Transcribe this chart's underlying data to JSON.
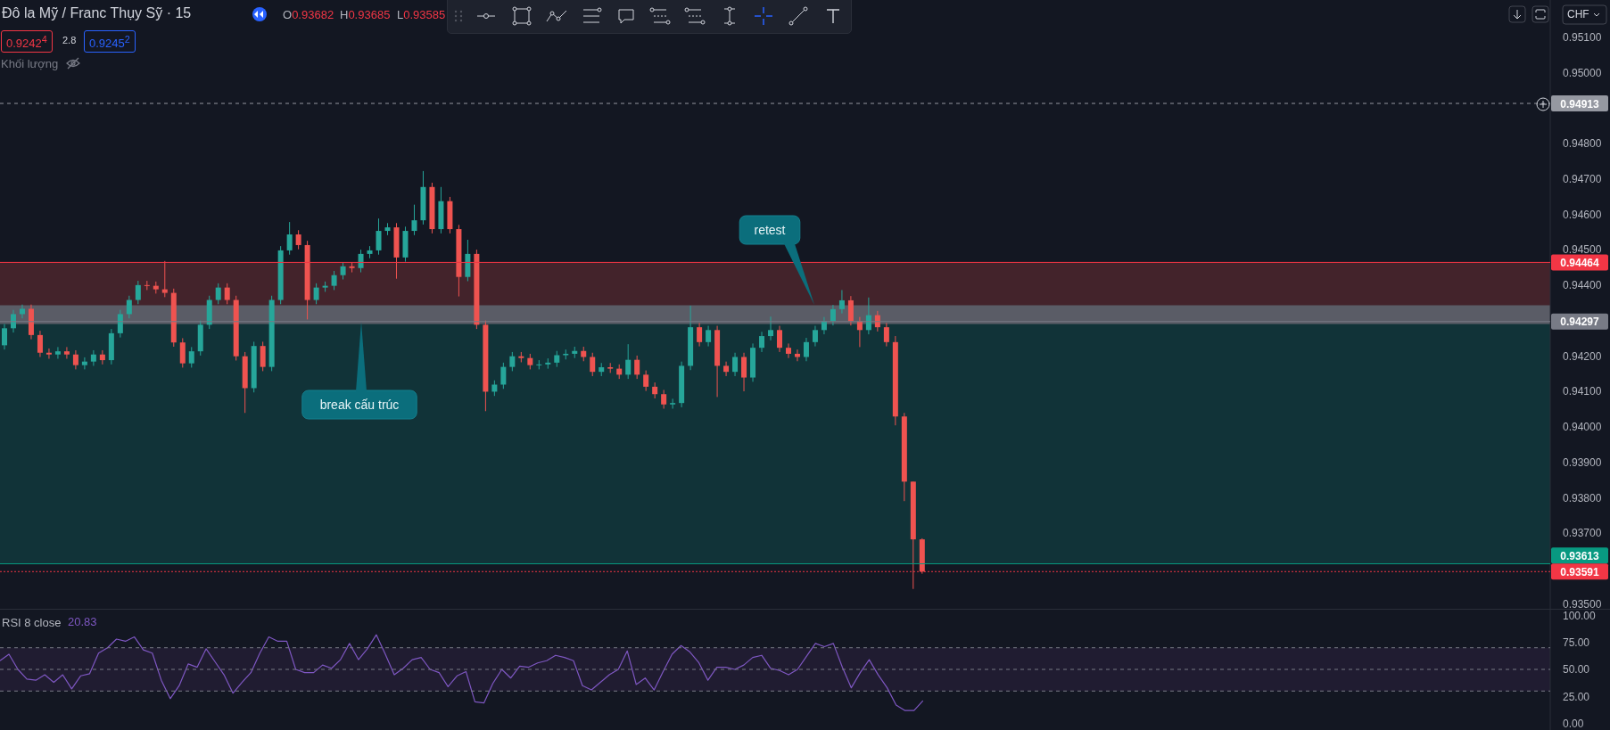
{
  "chart_data": [
    {
      "type": "candlestick",
      "title": "Đô la Mỹ / Franc Thụy Sỹ · 15",
      "ylabel": "CHF",
      "tick_labels": "y",
      "annotations": [
        "O0.93682",
        "H0.93685",
        "L0.93585",
        "0.9242$^{4}$",
        "2.8",
        "0.9245$^{2}$",
        "Khối lượng",
        "retest",
        "break cấu trúc"
      ],
      "categories": [
        null,
        null,
        null,
        null,
        null,
        null,
        null,
        null,
        null,
        null,
        null,
        null,
        null,
        null,
        null,
        null,
        null,
        null,
        null,
        null,
        null,
        null,
        null,
        null,
        null,
        null,
        null,
        null,
        null,
        null,
        null,
        null,
        null,
        null,
        null,
        null,
        null,
        null,
        null,
        null,
        null,
        null,
        null,
        null,
        null,
        null,
        null,
        null,
        null,
        null,
        null,
        null,
        null,
        null,
        null,
        null,
        null,
        null,
        null,
        null,
        null,
        null,
        null,
        null,
        null,
        null,
        null,
        null,
        null,
        null,
        null,
        null,
        null,
        null,
        null,
        null,
        null,
        null,
        null,
        null,
        null,
        null,
        null,
        null,
        null,
        null,
        null,
        null,
        null,
        null,
        null,
        null,
        null,
        null,
        null,
        null,
        null,
        null,
        null,
        null,
        null,
        null,
        null,
        null,
        null,
        null,
        null,
        null,
        null,
        null,
        null,
        null,
        null,
        null,
        null,
        null,
        null,
        null,
        null,
        null,
        null,
        null,
        null,
        null,
        null,
        null,
        null,
        null,
        null,
        null,
        null,
        null,
        null,
        null,
        null,
        null,
        null,
        null,
        null,
        null,
        null,
        null,
        null,
        null,
        null,
        null,
        null,
        null,
        null,
        null,
        null,
        null,
        null,
        null,
        null,
        null,
        null,
        null,
        null,
        null,
        null,
        null,
        null,
        null,
        null,
        null,
        null,
        null,
        null,
        null,
        null,
        null,
        null,
        null
      ],
      "ohlc": [
        [
          0.9423,
          0.9429,
          0.94218,
          0.94278
        ],
        [
          0.94278,
          0.9433,
          0.94266,
          0.94318
        ],
        [
          0.94318,
          0.94345,
          0.94306,
          0.94333
        ],
        [
          0.94333,
          0.94345,
          0.94247,
          0.94259
        ],
        [
          0.94259,
          0.94271,
          0.94197,
          0.94209
        ],
        [
          0.94209,
          0.94221,
          0.94192,
          0.94204
        ],
        [
          0.94204,
          0.94225,
          0.94192,
          0.94213
        ],
        [
          0.94213,
          0.94225,
          0.94192,
          0.94204
        ],
        [
          0.94204,
          0.94216,
          0.94162,
          0.94174
        ],
        [
          0.94174,
          0.94196,
          0.94162,
          0.94184
        ],
        [
          0.94184,
          0.94216,
          0.94172,
          0.94204
        ],
        [
          0.94204,
          0.94216,
          0.94176,
          0.94188
        ],
        [
          0.94188,
          0.94276,
          0.94176,
          0.94264
        ],
        [
          0.94264,
          0.9433,
          0.94252,
          0.94318
        ],
        [
          0.94318,
          0.9437,
          0.94306,
          0.94358
        ],
        [
          0.94358,
          0.94412,
          0.94346,
          0.944
        ],
        [
          0.944,
          0.94412,
          0.94386,
          0.94398
        ],
        [
          0.94398,
          0.9441,
          0.94376,
          0.94388
        ],
        [
          0.94388,
          0.94468,
          0.94366,
          0.94378
        ],
        [
          0.94378,
          0.9439,
          0.94226,
          0.94238
        ],
        [
          0.94238,
          0.9425,
          0.94167,
          0.94179
        ],
        [
          0.94179,
          0.94225,
          0.94167,
          0.94213
        ],
        [
          0.94213,
          0.943,
          0.94201,
          0.94288
        ],
        [
          0.94288,
          0.9437,
          0.94276,
          0.94358
        ],
        [
          0.94358,
          0.94405,
          0.94346,
          0.94393
        ],
        [
          0.94393,
          0.94405,
          0.94346,
          0.94358
        ],
        [
          0.94358,
          0.9437,
          0.94187,
          0.94199
        ],
        [
          0.94199,
          0.94211,
          0.94039,
          0.94109
        ],
        [
          0.94109,
          0.9424,
          0.94097,
          0.94228
        ],
        [
          0.94228,
          0.9424,
          0.94157,
          0.94169
        ],
        [
          0.94169,
          0.9437,
          0.94157,
          0.94358
        ],
        [
          0.94358,
          0.9451,
          0.94346,
          0.94498
        ],
        [
          0.94498,
          0.94578,
          0.94486,
          0.94543
        ],
        [
          0.94543,
          0.94555,
          0.94501,
          0.94513
        ],
        [
          0.94513,
          0.94525,
          0.94303,
          0.94358
        ],
        [
          0.94358,
          0.94405,
          0.94346,
          0.94393
        ],
        [
          0.94393,
          0.9441,
          0.94381,
          0.94398
        ],
        [
          0.94398,
          0.9444,
          0.94386,
          0.94428
        ],
        [
          0.94428,
          0.94465,
          0.94416,
          0.94453
        ],
        [
          0.94453,
          0.94465,
          0.94436,
          0.94448
        ],
        [
          0.94448,
          0.945,
          0.94436,
          0.94488
        ],
        [
          0.94488,
          0.9451,
          0.94476,
          0.94498
        ],
        [
          0.94498,
          0.94588,
          0.94486,
          0.94553
        ],
        [
          0.94553,
          0.94575,
          0.94541,
          0.94563
        ],
        [
          0.94563,
          0.94575,
          0.94418,
          0.94478
        ],
        [
          0.94478,
          0.94565,
          0.94466,
          0.94553
        ],
        [
          0.94553,
          0.94627,
          0.94541,
          0.94583
        ],
        [
          0.94583,
          0.94722,
          0.94571,
          0.94677
        ],
        [
          0.94677,
          0.94689,
          0.94546,
          0.94558
        ],
        [
          0.94558,
          0.94677,
          0.94546,
          0.94637
        ],
        [
          0.94637,
          0.94649,
          0.94546,
          0.94558
        ],
        [
          0.94558,
          0.9457,
          0.94368,
          0.94423
        ],
        [
          0.94423,
          0.94528,
          0.94411,
          0.94488
        ],
        [
          0.94488,
          0.945,
          0.94276,
          0.94288
        ],
        [
          0.94288,
          0.943,
          0.94044,
          0.94099
        ],
        [
          0.94099,
          0.94131,
          0.94087,
          0.94119
        ],
        [
          0.94119,
          0.94181,
          0.94107,
          0.94169
        ],
        [
          0.94169,
          0.94211,
          0.94157,
          0.94199
        ],
        [
          0.94199,
          0.94211,
          0.94182,
          0.94194
        ],
        [
          0.94194,
          0.94206,
          0.94162,
          0.94174
        ],
        [
          0.94174,
          0.94188,
          0.94162,
          0.94176
        ],
        [
          0.94176,
          0.94193,
          0.94164,
          0.94181
        ],
        [
          0.94181,
          0.94214,
          0.94169,
          0.94202
        ],
        [
          0.94202,
          0.94218,
          0.9419,
          0.94206
        ],
        [
          0.94206,
          0.94226,
          0.94194,
          0.94214
        ],
        [
          0.94214,
          0.94226,
          0.94185,
          0.94197
        ],
        [
          0.94197,
          0.94209,
          0.94143,
          0.94155
        ],
        [
          0.94155,
          0.9418,
          0.94143,
          0.94168
        ],
        [
          0.94168,
          0.9418,
          0.94152,
          0.94164
        ],
        [
          0.94164,
          0.94176,
          0.94135,
          0.94147
        ],
        [
          0.94147,
          0.94233,
          0.94135,
          0.94189
        ],
        [
          0.94189,
          0.94201,
          0.94135,
          0.94147
        ],
        [
          0.94147,
          0.94159,
          0.94101,
          0.94113
        ],
        [
          0.94113,
          0.94125,
          0.9408,
          0.94092
        ],
        [
          0.94092,
          0.94104,
          0.94051,
          0.94063
        ],
        [
          0.94063,
          0.94079,
          0.94051,
          0.94067
        ],
        [
          0.94067,
          0.94184,
          0.94055,
          0.94172
        ],
        [
          0.94172,
          0.94342,
          0.9416,
          0.94281
        ],
        [
          0.94281,
          0.94293,
          0.94227,
          0.94239
        ],
        [
          0.94239,
          0.94285,
          0.94227,
          0.94273
        ],
        [
          0.94273,
          0.94285,
          0.94084,
          0.94172
        ],
        [
          0.94172,
          0.94184,
          0.94143,
          0.94155
        ],
        [
          0.94155,
          0.94209,
          0.94143,
          0.94197
        ],
        [
          0.94197,
          0.94209,
          0.941,
          0.94139
        ],
        [
          0.94139,
          0.94235,
          0.94127,
          0.94223
        ],
        [
          0.94223,
          0.94268,
          0.94211,
          0.94256
        ],
        [
          0.94256,
          0.94311,
          0.94244,
          0.94273
        ],
        [
          0.94273,
          0.94285,
          0.94211,
          0.94223
        ],
        [
          0.94223,
          0.94235,
          0.94194,
          0.94206
        ],
        [
          0.94206,
          0.94218,
          0.94185,
          0.94197
        ],
        [
          0.94197,
          0.94251,
          0.94185,
          0.94239
        ],
        [
          0.94239,
          0.94285,
          0.94227,
          0.94273
        ],
        [
          0.94273,
          0.9431,
          0.94261,
          0.94298
        ],
        [
          0.94298,
          0.94344,
          0.94286,
          0.94332
        ],
        [
          0.94332,
          0.94386,
          0.9432,
          0.94357
        ],
        [
          0.94357,
          0.94369,
          0.94286,
          0.94298
        ],
        [
          0.94298,
          0.9431,
          0.94225,
          0.94273
        ],
        [
          0.94273,
          0.94365,
          0.94261,
          0.94315
        ],
        [
          0.94315,
          0.94327,
          0.94269,
          0.94281
        ],
        [
          0.94281,
          0.94293,
          0.94227,
          0.94239
        ],
        [
          0.94239,
          0.94256,
          0.94004,
          0.94029
        ],
        [
          0.94029,
          0.94039,
          0.9379,
          0.93845
        ],
        [
          0.93845,
          0.93845,
          0.93542,
          0.93682
        ],
        [
          0.93682,
          0.93685,
          0.93585,
          0.93591
        ],
        null,
        null,
        null,
        null,
        null,
        null,
        null,
        null,
        null,
        null,
        null,
        null,
        null,
        null,
        null,
        null,
        null,
        null,
        null,
        null,
        null,
        null,
        null,
        null,
        null,
        null,
        null,
        null,
        null,
        null,
        null,
        null,
        null,
        null,
        null,
        null,
        null,
        null,
        null,
        null,
        null,
        null,
        null,
        null,
        null,
        null,
        null,
        null,
        null,
        null,
        null,
        null,
        null,
        null,
        null,
        null,
        null,
        null,
        null,
        null,
        null,
        null,
        null,
        null,
        null,
        null,
        null,
        null,
        null,
        null
      ],
      "colors": [
        "#26a69a",
        "#26a69a",
        "#26a69a",
        "#ef5350",
        "#ef5350",
        "#ef5350",
        "#26a69a",
        "#ef5350",
        "#ef5350",
        "#26a69a",
        "#26a69a",
        "#ef5350",
        "#26a69a",
        "#26a69a",
        "#26a69a",
        "#26a69a",
        "#ef5350",
        "#ef5350",
        "#ef5350",
        "#ef5350",
        "#ef5350",
        "#26a69a",
        "#26a69a",
        "#26a69a",
        "#26a69a",
        "#ef5350",
        "#ef5350",
        "#ef5350",
        "#26a69a",
        "#ef5350",
        "#26a69a",
        "#26a69a",
        "#26a69a",
        "#ef5350",
        "#ef5350",
        "#26a69a",
        "#26a69a",
        "#26a69a",
        "#26a69a",
        "#ef5350",
        "#26a69a",
        "#26a69a",
        "#26a69a",
        "#26a69a",
        "#ef5350",
        "#26a69a",
        "#26a69a",
        "#26a69a",
        "#ef5350",
        "#26a69a",
        "#ef5350",
        "#ef5350",
        "#26a69a",
        "#ef5350",
        "#ef5350",
        "#26a69a",
        "#26a69a",
        "#26a69a",
        "#ef5350",
        "#ef5350",
        "#26a69a",
        "#26a69a",
        "#26a69a",
        "#26a69a",
        "#26a69a",
        "#ef5350",
        "#ef5350",
        "#26a69a",
        "#ef5350",
        "#ef5350",
        "#26a69a",
        "#ef5350",
        "#ef5350",
        "#ef5350",
        "#ef5350",
        "#26a69a",
        "#26a69a",
        "#26a69a",
        "#ef5350",
        "#26a69a",
        "#ef5350",
        "#ef5350",
        "#26a69a",
        "#ef5350",
        "#26a69a",
        "#26a69a",
        "#26a69a",
        "#ef5350",
        "#ef5350",
        "#ef5350",
        "#26a69a",
        "#26a69a",
        "#26a69a",
        "#26a69a",
        "#26a69a",
        "#ef5350",
        "#ef5350",
        "#26a69a",
        "#ef5350",
        "#ef5350",
        "#ef5350",
        "#ef5350",
        "#ef5350",
        "#ef5350",
        null,
        null,
        null,
        null,
        null,
        null,
        null,
        null,
        null,
        null,
        null,
        null,
        null,
        null,
        null,
        null,
        null,
        null,
        null,
        null,
        null,
        null,
        null,
        null,
        null,
        null,
        null,
        null,
        null,
        null,
        null,
        null,
        null,
        null,
        null,
        null,
        null,
        null,
        null,
        null,
        null,
        null,
        null,
        null,
        null,
        null,
        null,
        null,
        null,
        null,
        null,
        null,
        null,
        null,
        null,
        null,
        null,
        null,
        null,
        null,
        null,
        null,
        null,
        null,
        null,
        null,
        null,
        null,
        null,
        null
      ],
      "ylim": [
        0.93486,
        0.95205
      ],
      "yticks": [
        {
          "value": 0.935,
          "label": "0.93500"
        },
        {
          "value": 0.937,
          "label": "0.93700"
        },
        {
          "value": 0.938,
          "label": "0.93800"
        },
        {
          "value": 0.939,
          "label": "0.93900"
        },
        {
          "value": 0.94,
          "label": "0.94000"
        },
        {
          "value": 0.941,
          "label": "0.94100"
        },
        {
          "value": 0.942,
          "label": "0.94200"
        },
        {
          "value": 0.944,
          "label": "0.94400"
        },
        {
          "value": 0.945,
          "label": "0.94500"
        },
        {
          "value": 0.946,
          "label": "0.94600"
        },
        {
          "value": 0.947,
          "label": "0.94700"
        },
        {
          "value": 0.948,
          "label": "0.94800"
        },
        {
          "value": 0.95,
          "label": "0.95000"
        },
        {
          "value": 0.951,
          "label": "0.95100"
        }
      ],
      "bands": [
        {
          "axis": "y",
          "from": 0.93613,
          "to": 0.94297,
          "color": "#113338"
        },
        {
          "axis": "y",
          "from": 0.94297,
          "to": 0.94464,
          "color": "#43232b"
        },
        {
          "axis": "y",
          "from": 0.9429,
          "to": 0.94343,
          "color": "#5a5c66"
        }
      ],
      "ref_lines": [
        {
          "axis": "y",
          "value": 0.94913,
          "label": "0.94913",
          "line_style": "dashed",
          "color": "#9598a1"
        },
        {
          "axis": "y",
          "value": 0.94464,
          "label": "0.94464",
          "line_style": "solid",
          "color": "#f23645"
        },
        {
          "axis": "y",
          "value": 0.94297,
          "label": "0.94297",
          "line_style": "solid",
          "color": "#787b86"
        },
        {
          "axis": "y",
          "value": 0.93613,
          "label": "0.93613",
          "line_style": "solid",
          "color": "#089981"
        },
        {
          "axis": "y",
          "value": 0.93591,
          "label": "0.93591",
          "line_style": "dotted",
          "color": "#f23645"
        }
      ]
    },
    {
      "type": "line",
      "title": "RSI 8 close",
      "annotations": [
        "20.83"
      ],
      "tick_labels": "y",
      "categories": [
        null,
        null,
        null,
        null,
        null,
        null,
        null,
        null,
        null,
        null,
        null,
        null,
        null,
        null,
        null,
        null,
        null,
        null,
        null,
        null,
        null,
        null,
        null,
        null,
        null,
        null,
        null,
        null,
        null,
        null,
        null,
        null,
        null,
        null,
        null,
        null,
        null,
        null,
        null,
        null,
        null,
        null,
        null,
        null,
        null,
        null,
        null,
        null,
        null,
        null,
        null,
        null,
        null,
        null,
        null,
        null,
        null,
        null,
        null,
        null,
        null,
        null,
        null,
        null,
        null,
        null,
        null,
        null,
        null,
        null,
        null,
        null,
        null,
        null,
        null,
        null,
        null,
        null,
        null,
        null,
        null,
        null,
        null,
        null,
        null,
        null,
        null,
        null,
        null,
        null,
        null,
        null,
        null,
        null,
        null,
        null,
        null,
        null,
        null,
        null,
        null,
        null,
        null,
        null,
        null,
        null,
        null,
        null,
        null,
        null,
        null,
        null,
        null,
        null,
        null,
        null,
        null,
        null,
        null,
        null,
        null,
        null,
        null,
        null,
        null,
        null,
        null,
        null,
        null,
        null,
        null,
        null,
        null,
        null,
        null,
        null,
        null,
        null,
        null,
        null,
        null,
        null,
        null,
        null,
        null,
        null,
        null,
        null,
        null,
        null,
        null,
        null,
        null,
        null,
        null,
        null,
        null,
        null,
        null,
        null,
        null,
        null,
        null,
        null,
        null,
        null,
        null,
        null,
        null,
        null,
        null,
        null,
        null,
        null
      ],
      "values": [
        58,
        64,
        50,
        41,
        40,
        45,
        38,
        45,
        32,
        44,
        46,
        65,
        70,
        78,
        76,
        80,
        68,
        65,
        40,
        23,
        35,
        55,
        52,
        69,
        57,
        45,
        28,
        38,
        47,
        65,
        80,
        76,
        76,
        50,
        47,
        47,
        54,
        51,
        59,
        74,
        59,
        69,
        82,
        64,
        45,
        51,
        59,
        61,
        50,
        47,
        34,
        44,
        48,
        20,
        19,
        37,
        50,
        42,
        53,
        52,
        56,
        58,
        63,
        61,
        58,
        35,
        31,
        38,
        45,
        50,
        67,
        36,
        42,
        31,
        48,
        64,
        72,
        66,
        56,
        40,
        52,
        52,
        50,
        54,
        61,
        63,
        51,
        49,
        45,
        50,
        62,
        74,
        71,
        74,
        52,
        33,
        47,
        59,
        45,
        33,
        17,
        12,
        12,
        21,
        null,
        null,
        null,
        null,
        null,
        null,
        null,
        null,
        null,
        null,
        null,
        null,
        null,
        null,
        null,
        null,
        null,
        null,
        null,
        null,
        null,
        null,
        null,
        null,
        null,
        null,
        null,
        null,
        null,
        null,
        null,
        null,
        null,
        null,
        null,
        null,
        null,
        null,
        null,
        null,
        null,
        null,
        null,
        null,
        null,
        null,
        null,
        null,
        null,
        null,
        null,
        null,
        null,
        null,
        null,
        null,
        null,
        null,
        null,
        null,
        null,
        null,
        null,
        null,
        null,
        null,
        null,
        null,
        null,
        null
      ],
      "color": "#7e57c2",
      "ylim": [
        -6,
        106
      ],
      "yticks": [
        {
          "value": 0,
          "label": "0.00"
        },
        {
          "value": 25,
          "label": "25.00"
        },
        {
          "value": 50,
          "label": "50.00"
        },
        {
          "value": 75,
          "label": "75.00"
        },
        {
          "value": 100,
          "label": "100.00"
        }
      ],
      "bands": [
        {
          "axis": "y",
          "from": 30,
          "to": 70,
          "color": "#201c31"
        }
      ],
      "ref_lines": [
        {
          "axis": "y",
          "value": 70,
          "line_style": "dashed",
          "color": "#787b86"
        },
        {
          "axis": "y",
          "value": 50,
          "line_style": "dashed",
          "color": "#787b86"
        },
        {
          "axis": "y",
          "value": 30,
          "line_style": "dashed",
          "color": "#787b86"
        }
      ]
    }
  ]
}
